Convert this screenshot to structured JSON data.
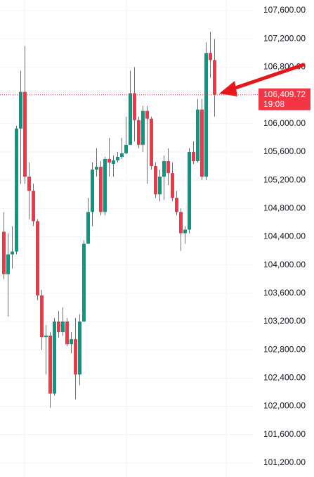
{
  "chart_data": {
    "type": "candlestick",
    "up_color": "#089981",
    "down_color": "#f23645",
    "grid": true,
    "ylim": [
      101000,
      107750
    ],
    "yticks": [
      {
        "value": 101200,
        "label": "101,200.00"
      },
      {
        "value": 101600,
        "label": "101,600.00"
      },
      {
        "value": 102000,
        "label": "102,000.00"
      },
      {
        "value": 102400,
        "label": "102,400.00"
      },
      {
        "value": 102800,
        "label": "102,800.00"
      },
      {
        "value": 103200,
        "label": "103,200.00"
      },
      {
        "value": 103600,
        "label": "103,600.00"
      },
      {
        "value": 104000,
        "label": "104,000.00"
      },
      {
        "value": 104400,
        "label": "104,400.00"
      },
      {
        "value": 104800,
        "label": "104,800.00"
      },
      {
        "value": 105200,
        "label": "105,200.00"
      },
      {
        "value": 105600,
        "label": "105,600.00"
      },
      {
        "value": 106000,
        "label": "106,000.00"
      },
      {
        "value": 106400,
        "label": "106,400.00"
      },
      {
        "value": 106800,
        "label": "106,800.00"
      },
      {
        "value": 107200,
        "label": "107,200.00"
      },
      {
        "value": 107600,
        "label": "107,600.00"
      }
    ],
    "open": [
      104470,
      103870,
      104150,
      104190,
      105930,
      106450,
      105250,
      105050,
      104620,
      103570,
      102980,
      103000,
      102180,
      103200,
      103050,
      103200,
      102880,
      102950,
      102450,
      103200,
      104300,
      104750,
      105350,
      105390,
      104750,
      105500,
      105430,
      105480,
      105530,
      105580,
      105700,
      106430,
      106050,
      105700,
      106180,
      106070,
      105400,
      105000,
      105250,
      105470,
      105300,
      104950,
      104750,
      104450,
      104500,
      105600,
      105470,
      106200,
      105250,
      107000,
      106900
    ],
    "high": [
      104750,
      104450,
      104550,
      105970,
      106750,
      107100,
      105450,
      105150,
      104650,
      103650,
      103150,
      103050,
      103250,
      103350,
      103400,
      103250,
      103050,
      103250,
      103300,
      104350,
      104950,
      105450,
      105650,
      105470,
      105530,
      105800,
      105550,
      105600,
      105800,
      106100,
      106750,
      106800,
      106100,
      106250,
      106250,
      106100,
      105450,
      105350,
      105550,
      105650,
      105450,
      105050,
      104800,
      104550,
      105650,
      105750,
      106350,
      106350,
      107150,
      107300,
      107200
    ],
    "low": [
      103800,
      103270,
      103950,
      104150,
      105150,
      105150,
      104650,
      104550,
      103500,
      102800,
      102450,
      101980,
      102150,
      102970,
      103000,
      102850,
      102750,
      102100,
      102300,
      103200,
      104300,
      104550,
      105250,
      104700,
      104700,
      105250,
      105250,
      105450,
      105500,
      105570,
      105700,
      105750,
      105650,
      105600,
      105150,
      105350,
      104950,
      104900,
      104920,
      105130,
      104900,
      104700,
      104200,
      104300,
      104450,
      105430,
      105450,
      105200,
      105200,
      106650,
      106100
    ],
    "close": [
      103870,
      104150,
      104190,
      105930,
      106450,
      105250,
      105050,
      104620,
      103570,
      102980,
      103000,
      102180,
      103200,
      103050,
      103200,
      102880,
      102950,
      102450,
      103200,
      104300,
      104750,
      105350,
      105390,
      104750,
      105500,
      105450,
      105480,
      105530,
      105580,
      105700,
      106430,
      106050,
      105700,
      106180,
      106070,
      105400,
      105000,
      105250,
      105470,
      105300,
      104950,
      104750,
      104450,
      104500,
      105600,
      105470,
      106200,
      105250,
      107000,
      106900,
      106409.72
    ],
    "last_price": {
      "value": 106409.72,
      "label": "106,409.72"
    },
    "countdown": "19:08"
  }
}
